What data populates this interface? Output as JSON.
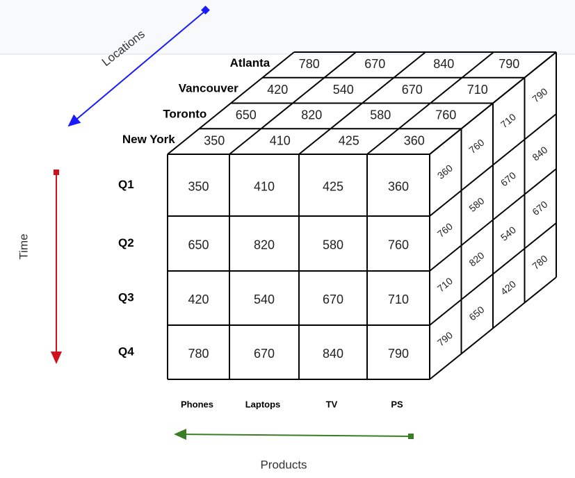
{
  "axes": {
    "locations": "Locations",
    "time": "Time",
    "products": "Products"
  },
  "locations": [
    "Atlanta",
    "Vancouver",
    "Toronto",
    "New York"
  ],
  "quarters": [
    "Q1",
    "Q2",
    "Q3",
    "Q4"
  ],
  "products": [
    "Phones",
    "Laptops",
    "TV",
    "PS"
  ],
  "front": [
    [
      350,
      410,
      425,
      360
    ],
    [
      650,
      820,
      580,
      760
    ],
    [
      420,
      540,
      670,
      710
    ],
    [
      780,
      670,
      840,
      790
    ]
  ],
  "top": [
    [
      780,
      670,
      840,
      790
    ],
    [
      420,
      540,
      670,
      710
    ],
    [
      650,
      820,
      580,
      760
    ],
    [
      350,
      410,
      425,
      360
    ]
  ],
  "side": [
    [
      360,
      760,
      710,
      790
    ],
    [
      760,
      580,
      820,
      650
    ],
    [
      710,
      670,
      540,
      420
    ],
    [
      790,
      840,
      670,
      780
    ]
  ]
}
